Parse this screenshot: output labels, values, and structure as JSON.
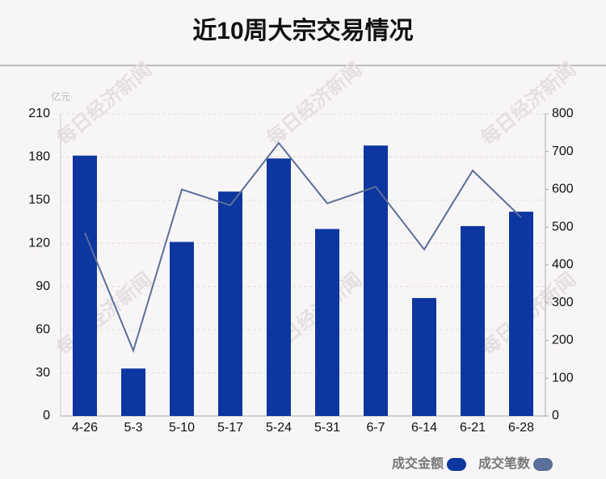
{
  "chart_data": {
    "type": "bar",
    "title": "近10周大宗交易情况",
    "ylabel": "亿元",
    "watermark": "每日经济新闻",
    "categories": [
      "4-26",
      "5-3",
      "5-10",
      "5-17",
      "5-24",
      "5-31",
      "6-7",
      "6-14",
      "6-21",
      "6-28"
    ],
    "series": [
      {
        "name": "成交金额",
        "type": "bar",
        "axis": "y",
        "color": "#0d36a0",
        "values": [
          181,
          33,
          121,
          156,
          179,
          130,
          188,
          82,
          132,
          142
        ]
      },
      {
        "name": "成交笔数",
        "type": "line",
        "axis": "y2",
        "color": "#5a6f9a",
        "values": [
          485,
          173,
          600,
          558,
          723,
          563,
          607,
          441,
          650,
          526
        ]
      }
    ],
    "ylim": [
      0,
      210
    ],
    "yticks": [
      0,
      30,
      60,
      90,
      120,
      150,
      180,
      210
    ],
    "y2lim": [
      0,
      800
    ],
    "y2ticks": [
      0,
      100,
      200,
      300,
      400,
      500,
      600,
      700,
      800
    ],
    "grid": true,
    "legend": "bottom-right"
  }
}
